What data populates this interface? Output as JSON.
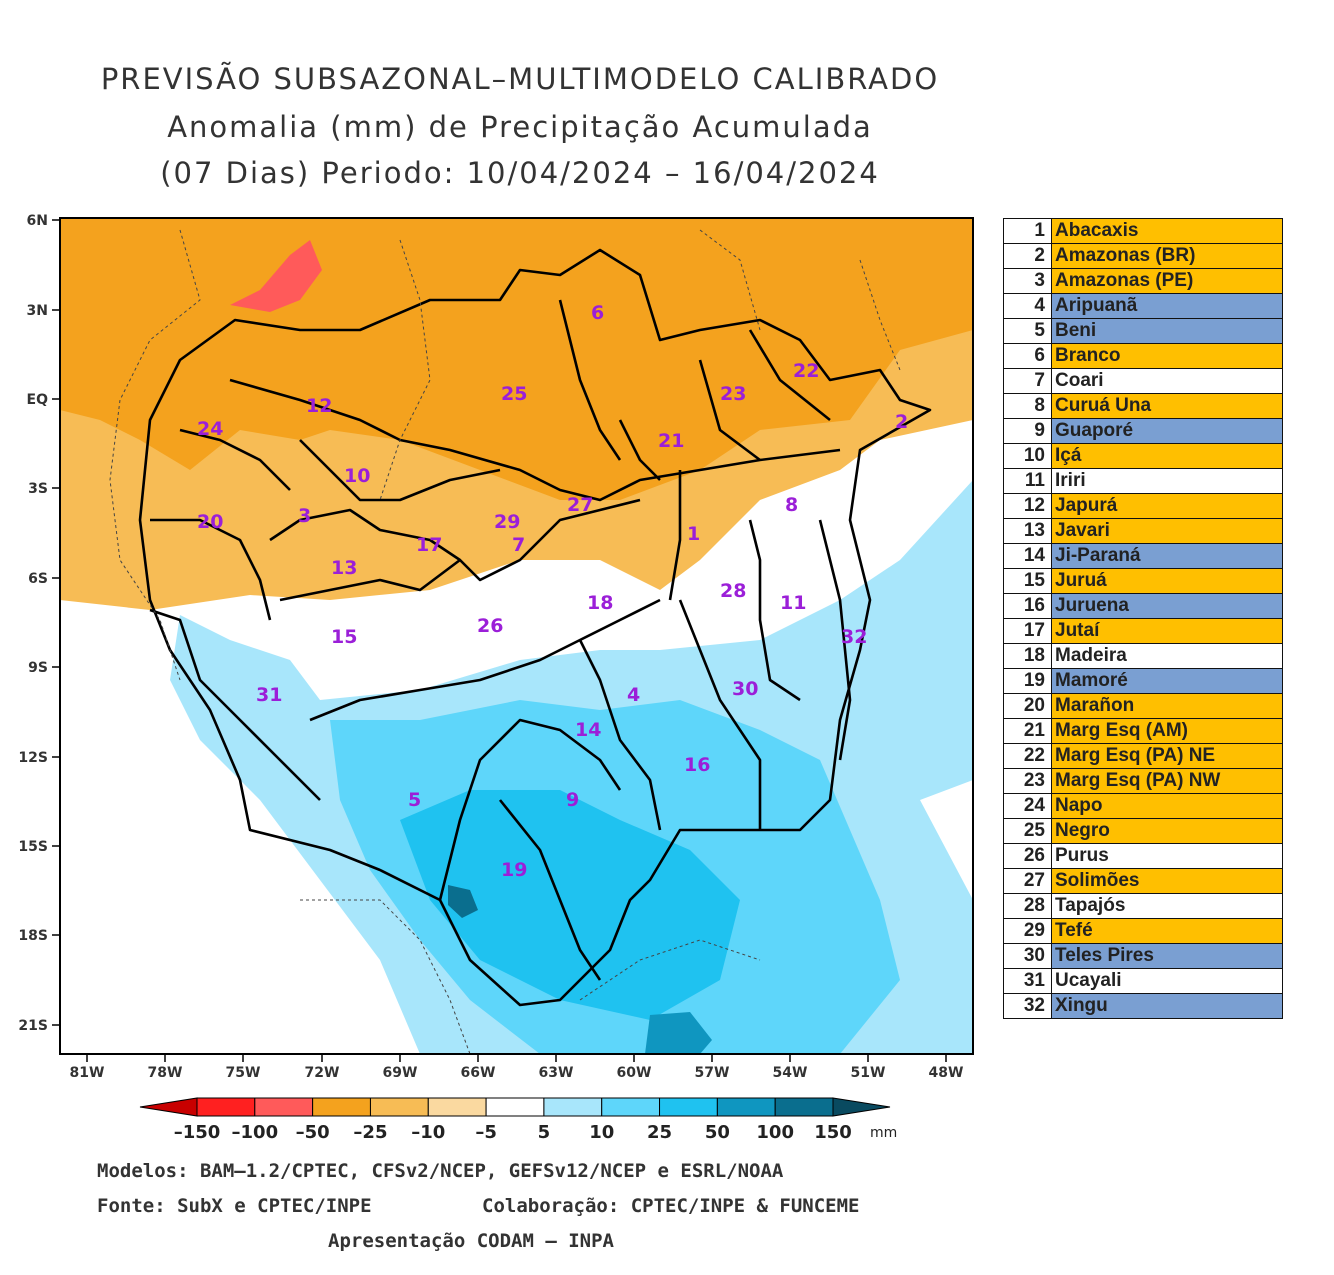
{
  "title": {
    "line1": "PREVISÃO SUBSAZONAL–MULTIMODELO CALIBRADO",
    "line2": "Anomalia (mm) de Precipitação Acumulada",
    "line3": "(07 Dias) Periodo: 10/04/2024 – 16/04/2024"
  },
  "axes": {
    "lat_labels": [
      "6N",
      "3N",
      "EQ",
      "3S",
      "6S",
      "9S",
      "12S",
      "15S",
      "18S",
      "21S"
    ],
    "lon_labels": [
      "81W",
      "78W",
      "75W",
      "72W",
      "69W",
      "66W",
      "63W",
      "60W",
      "57W",
      "54W",
      "51W",
      "48W"
    ]
  },
  "basin_numbers": [
    "1",
    "2",
    "3",
    "4",
    "5",
    "6",
    "7",
    "8",
    "9",
    "10",
    "11",
    "12",
    "13",
    "14",
    "15",
    "16",
    "17",
    "18",
    "19",
    "20",
    "21",
    "22",
    "23",
    "24",
    "25",
    "26",
    "27",
    "28",
    "29",
    "30",
    "31",
    "32"
  ],
  "legend": [
    {
      "num": "1",
      "name": "Abacaxis",
      "color": "#ffbf00"
    },
    {
      "num": "2",
      "name": "Amazonas (BR)",
      "color": "#ffbf00"
    },
    {
      "num": "3",
      "name": "Amazonas (PE)",
      "color": "#ffbf00"
    },
    {
      "num": "4",
      "name": "Aripuanã",
      "color": "#7a9fd2"
    },
    {
      "num": "5",
      "name": "Beni",
      "color": "#7a9fd2"
    },
    {
      "num": "6",
      "name": "Branco",
      "color": "#ffbf00"
    },
    {
      "num": "7",
      "name": "Coari",
      "color": "#ffffff"
    },
    {
      "num": "8",
      "name": "Curuá Una",
      "color": "#ffbf00"
    },
    {
      "num": "9",
      "name": "Guaporé",
      "color": "#7a9fd2"
    },
    {
      "num": "10",
      "name": "Içá",
      "color": "#ffbf00"
    },
    {
      "num": "11",
      "name": "Iriri",
      "color": "#ffffff"
    },
    {
      "num": "12",
      "name": "Japurá",
      "color": "#ffbf00"
    },
    {
      "num": "13",
      "name": "Javari",
      "color": "#ffbf00"
    },
    {
      "num": "14",
      "name": "Ji-Paraná",
      "color": "#7a9fd2"
    },
    {
      "num": "15",
      "name": "Juruá",
      "color": "#ffbf00"
    },
    {
      "num": "16",
      "name": "Juruena",
      "color": "#7a9fd2"
    },
    {
      "num": "17",
      "name": "Jutaí",
      "color": "#ffbf00"
    },
    {
      "num": "18",
      "name": "Madeira",
      "color": "#ffffff"
    },
    {
      "num": "19",
      "name": "Mamoré",
      "color": "#7a9fd2"
    },
    {
      "num": "20",
      "name": "Marañon",
      "color": "#ffbf00"
    },
    {
      "num": "21",
      "name": "Marg Esq (AM)",
      "color": "#ffbf00"
    },
    {
      "num": "22",
      "name": "Marg Esq (PA) NE",
      "color": "#ffbf00"
    },
    {
      "num": "23",
      "name": "Marg Esq (PA) NW",
      "color": "#ffbf00"
    },
    {
      "num": "24",
      "name": "Napo",
      "color": "#ffbf00"
    },
    {
      "num": "25",
      "name": "Negro",
      "color": "#ffbf00"
    },
    {
      "num": "26",
      "name": "Purus",
      "color": "#ffffff"
    },
    {
      "num": "27",
      "name": "Solimões",
      "color": "#ffbf00"
    },
    {
      "num": "28",
      "name": "Tapajós",
      "color": "#ffffff"
    },
    {
      "num": "29",
      "name": "Tefé",
      "color": "#ffbf00"
    },
    {
      "num": "30",
      "name": "Teles Pires",
      "color": "#7a9fd2"
    },
    {
      "num": "31",
      "name": "Ucayali",
      "color": "#ffffff"
    },
    {
      "num": "32",
      "name": "Xingu",
      "color": "#7a9fd2"
    }
  ],
  "colorbar": {
    "labels": [
      "–150",
      "–100",
      "–50",
      "–25",
      "–10",
      "–5",
      "5",
      "10",
      "25",
      "50",
      "100",
      "150"
    ],
    "unit": "mm",
    "colors": [
      "#c80000",
      "#ff2020",
      "#ff5a5a",
      "#f4a21e",
      "#f7bc55",
      "#fad9a0",
      "#ffffff",
      "#a8e6fb",
      "#5ed6fa",
      "#1fc2f0",
      "#0f96c0",
      "#0a6e8e",
      "#094a60"
    ]
  },
  "footer": {
    "models": "Modelos: BAM–1.2/CPTEC, CFSv2/NCEP, GEFSv12/NCEP e ESRL/NOAA",
    "source": "Fonte: SubX e CPTEC/INPE",
    "collab": "Colaboração: CPTEC/INPE & FUNCEME",
    "presentation": "Apresentação CODAM – INPA"
  }
}
